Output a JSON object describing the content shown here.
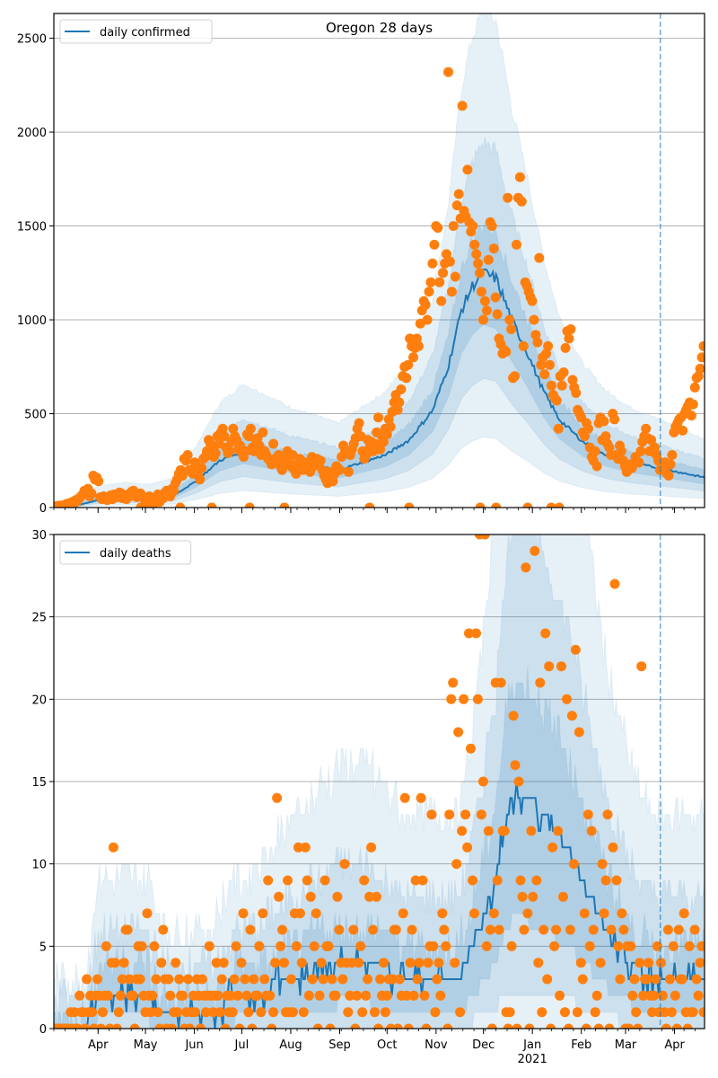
{
  "chart_data": [
    {
      "type": "line",
      "id": "confirmed",
      "title": "Oregon 28 days",
      "xlabel": "",
      "ylabel": "",
      "ylim": [
        0,
        2632
      ],
      "yticks": [
        0,
        500,
        1000,
        1500,
        2000,
        2500
      ],
      "grid": "horizontal",
      "legend": {
        "placement": "top-left",
        "entries": [
          {
            "label": "daily confirmed",
            "color": "#1f77b4"
          }
        ]
      },
      "x_start": "2020-03-04",
      "x_end": "2021-04-20",
      "forecast_start": "2021-03-23",
      "xtick_labels": [
        {
          "date": "2020-04-01",
          "label": "Apr"
        },
        {
          "date": "2020-05-01",
          "label": "May"
        },
        {
          "date": "2020-06-01",
          "label": "Jun"
        },
        {
          "date": "2020-07-01",
          "label": "Jul"
        },
        {
          "date": "2020-08-01",
          "label": "Aug"
        },
        {
          "date": "2020-09-01",
          "label": "Sep"
        },
        {
          "date": "2020-10-01",
          "label": "Oct"
        },
        {
          "date": "2020-11-01",
          "label": "Nov"
        },
        {
          "date": "2020-12-01",
          "label": "Dec"
        },
        {
          "date": "2021-01-01",
          "label": "Jan",
          "sublabel": "2021"
        },
        {
          "date": "2021-02-01",
          "label": "Feb"
        },
        {
          "date": "2021-03-01",
          "label": "Mar"
        },
        {
          "date": "2021-04-01",
          "label": "Apr"
        }
      ],
      "model_keypoints": {
        "comment": "median model line and band half-widths (multipliers) sampled at day offsets from x_start",
        "days": [
          0,
          14,
          28,
          45,
          60,
          75,
          90,
          105,
          120,
          135,
          150,
          165,
          180,
          195,
          210,
          225,
          240,
          250,
          258,
          265,
          272,
          280,
          290,
          300,
          310,
          320,
          335,
          350,
          365,
          380,
          395,
          412
        ],
        "median": [
          0,
          10,
          40,
          50,
          45,
          60,
          140,
          250,
          300,
          270,
          240,
          220,
          200,
          240,
          280,
          360,
          520,
          760,
          1050,
          1180,
          1250,
          1220,
          1000,
          820,
          620,
          470,
          350,
          280,
          240,
          215,
          190,
          160
        ]
      },
      "observed": {
        "comment": "daily confirmed case counts (orange dots), values by day offset from x_start",
        "values": [
          5,
          8,
          3,
          10,
          6,
          12,
          15,
          20,
          18,
          25,
          30,
          28,
          40,
          35,
          50,
          60,
          70,
          90,
          80,
          100,
          60,
          75,
          170,
          150,
          160,
          140,
          55,
          45,
          60,
          50,
          40,
          55,
          65,
          45,
          70,
          60,
          55,
          80,
          75,
          50,
          65,
          45,
          70,
          60,
          85,
          90,
          65,
          55,
          70,
          75,
          60,
          50,
          30,
          45,
          60,
          50,
          40,
          25,
          55,
          70,
          30,
          65,
          50,
          80,
          90,
          70,
          60,
          100,
          90,
          130,
          150,
          180,
          200,
          170,
          260,
          250,
          280,
          200,
          190,
          180,
          240,
          220,
          170,
          150,
          210,
          260,
          270,
          300,
          360,
          340,
          320,
          270,
          290,
          380,
          340,
          400,
          420,
          380,
          320,
          290,
          300,
          350,
          420,
          380,
          360,
          310,
          330,
          290,
          270,
          300,
          390,
          380,
          420,
          320,
          300,
          360,
          370,
          330,
          280,
          400,
          300,
          280,
          260,
          250,
          230,
          340,
          260,
          250,
          280,
          220,
          200,
          260,
          240,
          300,
          250,
          220,
          280,
          200,
          180,
          230,
          260,
          250,
          200,
          240,
          210,
          230,
          190,
          270,
          220,
          250,
          260,
          230,
          250,
          200,
          170,
          150,
          130,
          190,
          160,
          140,
          180,
          220,
          210,
          200,
          270,
          330,
          300,
          290,
          190,
          280,
          310,
          340,
          370,
          420,
          450,
          380,
          300,
          260,
          280,
          360,
          320,
          350,
          300,
          340,
          400,
          480,
          310,
          380,
          350,
          420,
          390,
          470,
          430,
          510,
          560,
          600,
          520,
          560,
          630,
          700,
          750,
          690,
          760,
          900,
          860,
          800,
          850,
          900,
          860,
          980,
          1050,
          1100,
          1080,
          1000,
          1150,
          1200,
          1300,
          1400,
          1500,
          1490,
          1200,
          1100,
          1250,
          1300,
          1350,
          2320,
          1310,
          1150,
          1500,
          1230,
          1610,
          1670,
          1540,
          2140,
          1580,
          1550,
          1800,
          1520,
          1470,
          1500,
          1400,
          1350,
          1300,
          1250,
          1150,
          1000,
          1100,
          1050,
          1320,
          1520,
          1500,
          1380,
          1120,
          1030,
          900,
          870,
          820,
          840,
          830,
          1650,
          1000,
          950,
          690,
          700,
          1400,
          1650,
          1760,
          1630,
          860,
          1200,
          1180,
          1150,
          1120,
          1100,
          1000,
          920,
          880,
          1330,
          760,
          800,
          710,
          820,
          860,
          760,
          650,
          600,
          580,
          570,
          420,
          700,
          650,
          720,
          850,
          940,
          900,
          950,
          680,
          640,
          610,
          520,
          500,
          480,
          400,
          380,
          450,
          420,
          320,
          270,
          250,
          300,
          220,
          450,
          480,
          360,
          460,
          380,
          340,
          320,
          280,
          500,
          470,
          280,
          260,
          330,
          300,
          250,
          220,
          190,
          200,
          230,
          210,
          230,
          270,
          240,
          240,
          300,
          350,
          380,
          420,
          370,
          300,
          360,
          310,
          320,
          280,
          250,
          200,
          220,
          210,
          240,
          180,
          170,
          230,
          280,
          400,
          430,
          450,
          470,
          480,
          410,
          500,
          520,
          540,
          560,
          490,
          550,
          640,
          690,
          700,
          740,
          800,
          860
        ],
        "zeros_at_days": [
          6,
          12,
          55,
          60,
          80,
          100,
          124,
          146,
          200,
          225,
          270,
          280,
          300,
          315,
          320
        ]
      }
    },
    {
      "type": "line",
      "id": "deaths",
      "title": "",
      "xlabel": "",
      "ylabel": "",
      "ylim": [
        0,
        30
      ],
      "yticks": [
        0,
        5,
        10,
        15,
        20,
        25,
        30
      ],
      "grid": "horizontal",
      "legend": {
        "placement": "top-left",
        "entries": [
          {
            "label": "daily deaths",
            "color": "#1f77b4"
          }
        ]
      },
      "x_start": "2020-03-04",
      "x_end": "2021-04-20",
      "forecast_start": "2021-03-23",
      "xtick_labels": [
        {
          "date": "2020-04-01",
          "label": "Apr"
        },
        {
          "date": "2020-05-01",
          "label": "May"
        },
        {
          "date": "2020-06-01",
          "label": "Jun"
        },
        {
          "date": "2020-07-01",
          "label": "Jul"
        },
        {
          "date": "2020-08-01",
          "label": "Aug"
        },
        {
          "date": "2020-09-01",
          "label": "Sep"
        },
        {
          "date": "2020-10-01",
          "label": "Oct"
        },
        {
          "date": "2020-11-01",
          "label": "Nov"
        },
        {
          "date": "2020-12-01",
          "label": "Dec"
        },
        {
          "date": "2021-01-01",
          "label": "Jan",
          "sublabel": "2021"
        },
        {
          "date": "2021-02-01",
          "label": "Feb"
        },
        {
          "date": "2021-03-01",
          "label": "Mar"
        },
        {
          "date": "2021-04-01",
          "label": "Apr"
        }
      ],
      "model_keypoints": {
        "days": [
          0,
          20,
          28,
          35,
          60,
          68,
          75,
          100,
          115,
          125,
          150,
          180,
          200,
          225,
          240,
          255,
          262,
          270,
          280,
          285,
          290,
          300,
          310,
          325,
          335,
          350,
          365,
          380,
          395,
          412
        ],
        "median": [
          0,
          0,
          2,
          2,
          2,
          1,
          1,
          1,
          2,
          2,
          3,
          4,
          4,
          3,
          3,
          3,
          4,
          6,
          9,
          12,
          14,
          14,
          13,
          11,
          9,
          6,
          4,
          3,
          3,
          3
        ]
      },
      "observed": {
        "comment": "daily deaths (orange dots), values by day offset from x_start",
        "values": [
          0,
          0,
          0,
          0,
          0,
          0,
          0,
          0,
          0,
          1,
          0,
          1,
          0,
          0,
          2,
          1,
          1,
          0,
          3,
          1,
          2,
          1,
          0,
          2,
          3,
          2,
          0,
          1,
          2,
          5,
          2,
          0,
          4,
          11,
          4,
          0,
          1,
          2,
          3,
          4,
          6,
          6,
          3,
          2,
          2,
          0,
          3,
          5,
          3,
          5,
          2,
          1,
          7,
          2,
          1,
          2,
          5,
          3,
          1,
          0,
          4,
          6,
          3,
          0,
          3,
          2,
          0,
          1,
          4,
          1,
          3,
          2,
          2,
          0,
          1,
          3,
          0,
          1,
          2,
          1,
          3,
          2,
          0,
          3,
          2,
          1,
          2,
          5,
          2,
          1,
          2,
          4,
          2,
          1,
          3,
          4,
          0,
          2,
          1,
          2,
          1,
          3,
          5,
          2,
          0,
          4,
          7,
          3,
          2,
          1,
          6,
          0,
          3,
          2,
          2,
          5,
          1,
          7,
          3,
          2,
          9,
          2,
          0,
          1,
          4,
          14,
          8,
          5,
          6,
          4,
          1,
          9,
          1,
          3,
          1,
          7,
          5,
          11,
          7,
          4,
          1,
          11,
          9,
          2,
          8,
          3,
          5,
          7,
          0,
          2,
          4,
          3,
          9,
          5,
          5,
          0,
          3,
          2,
          2,
          8,
          6,
          4,
          3,
          10,
          4,
          1,
          2,
          4,
          6,
          0,
          2,
          4,
          5,
          1,
          9,
          2,
          3,
          8,
          11,
          6,
          1,
          8,
          0,
          3,
          2,
          4,
          1,
          2,
          3,
          0,
          3,
          6,
          6,
          0,
          3,
          2,
          7,
          14,
          2,
          0,
          4,
          6,
          2,
          9,
          3,
          4,
          14,
          9,
          2,
          0,
          4,
          5,
          13,
          5,
          1,
          3,
          4,
          2,
          7,
          6,
          5,
          0,
          13,
          20,
          21,
          4,
          10,
          18,
          1,
          12,
          20,
          13,
          11,
          24,
          17,
          9,
          7,
          24,
          20,
          30,
          13,
          15,
          30,
          5,
          12,
          6,
          0,
          7,
          21,
          9,
          6,
          21,
          12,
          12,
          1,
          0,
          1,
          5,
          19,
          16,
          0,
          15,
          9,
          8,
          6,
          28,
          7,
          0,
          12,
          8,
          29,
          9,
          4,
          21,
          1,
          6,
          24,
          3,
          22,
          0,
          11,
          5,
          6,
          12,
          2,
          22,
          8,
          1,
          20,
          0,
          6,
          19,
          10,
          23,
          1,
          18,
          4,
          3,
          7,
          0,
          13,
          5,
          12,
          6,
          1,
          2,
          0,
          4,
          10,
          7,
          9,
          13,
          0,
          6,
          11,
          27,
          9,
          5,
          3,
          7,
          6,
          0,
          5,
          0,
          5,
          2,
          3,
          1,
          0,
          4,
          22,
          2,
          3,
          3,
          4,
          2,
          1,
          2,
          3,
          5,
          1,
          4,
          2,
          1,
          0,
          6,
          3,
          1,
          5,
          2,
          0,
          6,
          3,
          3,
          7,
          1,
          0,
          5,
          1,
          1,
          6,
          3,
          2,
          4,
          5,
          1
        ],
        "zeros_at_days": []
      }
    }
  ],
  "colors": {
    "model_line": "#1f77b4",
    "observed_dots": "#ff7f0e",
    "band": "#1f77b4",
    "grid": "#b0b0b0",
    "forecast_line": "#1f77b4"
  }
}
